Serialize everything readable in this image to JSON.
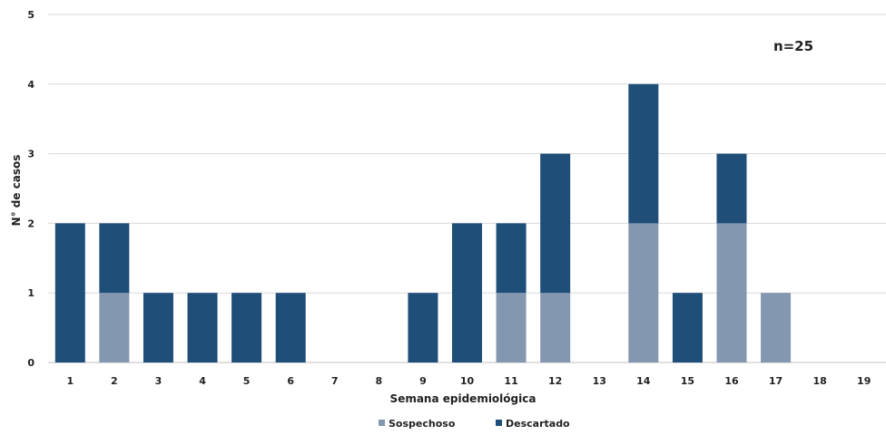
{
  "chart_data": {
    "type": "bar",
    "stacked": true,
    "categories": [
      "1",
      "2",
      "3",
      "4",
      "5",
      "6",
      "7",
      "8",
      "9",
      "10",
      "11",
      "12",
      "13",
      "14",
      "15",
      "16",
      "17",
      "18",
      "19"
    ],
    "series": [
      {
        "name": "Sospechoso",
        "color": "#8497b0",
        "values": [
          0,
          1,
          0,
          0,
          0,
          0,
          0,
          0,
          0,
          0,
          1,
          1,
          0,
          2,
          0,
          2,
          1,
          0,
          0
        ]
      },
      {
        "name": "Descartado",
        "color": "#1f4e79",
        "values": [
          2,
          1,
          1,
          1,
          1,
          1,
          0,
          0,
          1,
          2,
          1,
          2,
          0,
          2,
          1,
          1,
          0,
          0,
          0
        ]
      }
    ],
    "title": "",
    "annotation": "n=25",
    "xlabel": "Semana epidemiológica",
    "ylabel": "N° de casos",
    "ylim": [
      0,
      5
    ],
    "yticks": [
      "0",
      "1",
      "2",
      "3",
      "4",
      "5"
    ],
    "grid": true,
    "legend_position": "bottom"
  }
}
